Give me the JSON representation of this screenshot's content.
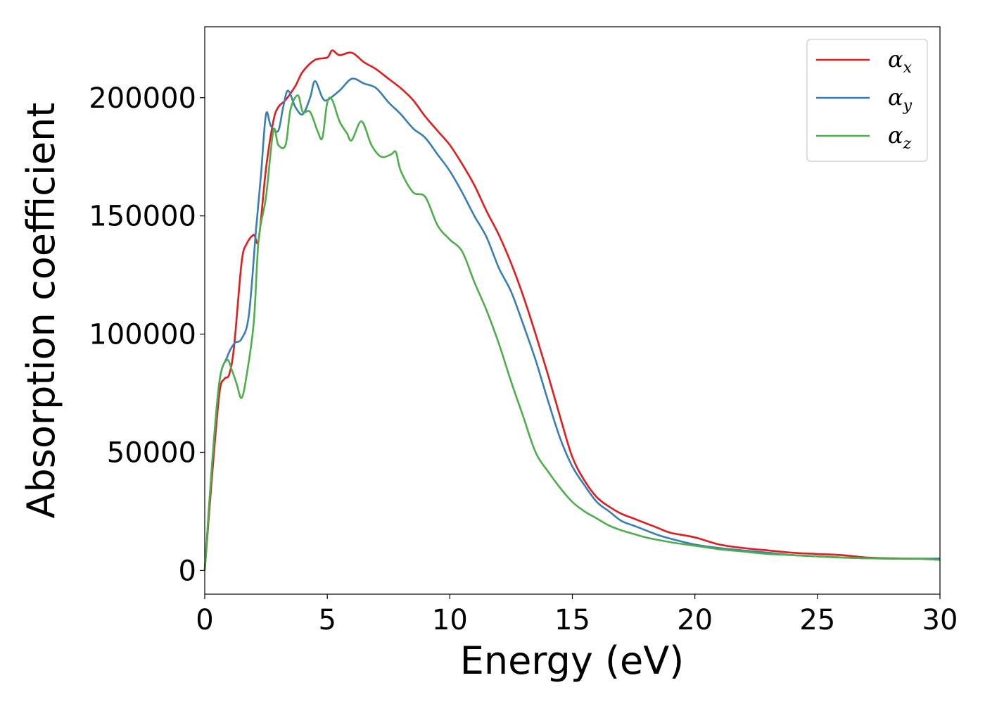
{
  "chart_data": {
    "type": "line",
    "title": "",
    "xlabel": "Energy (eV)",
    "ylabel": "Absorption coefficient",
    "xlim": [
      0,
      30
    ],
    "ylim": [
      -10000,
      230000
    ],
    "xticks": [
      0,
      5,
      10,
      15,
      20,
      25,
      30
    ],
    "xtick_labels": [
      "0",
      "5",
      "10",
      "15",
      "20",
      "25",
      "30"
    ],
    "yticks": [
      0,
      50000,
      100000,
      150000,
      200000
    ],
    "ytick_labels": [
      "0",
      "50000",
      "100000",
      "150000",
      "200000"
    ],
    "grid": false,
    "legend_position": "top-right",
    "series": [
      {
        "name": "α_x",
        "legend_main": "α",
        "legend_sub": "x",
        "color": "#e41a1c",
        "x": [
          0,
          0.3,
          0.6,
          0.8,
          1.0,
          1.2,
          1.5,
          1.7,
          2.0,
          2.2,
          2.5,
          2.8,
          3.0,
          3.3,
          3.7,
          4.0,
          4.5,
          5.0,
          5.2,
          5.5,
          6.0,
          6.5,
          7.0,
          7.5,
          8.0,
          8.5,
          9.0,
          9.5,
          10.0,
          10.5,
          11.0,
          11.5,
          12.0,
          12.5,
          13.0,
          13.5,
          14.0,
          14.5,
          15.0,
          15.5,
          16.0,
          16.5,
          17.0,
          17.5,
          18.0,
          18.5,
          19.0,
          20.0,
          21.0,
          22.0,
          23.0,
          24.0,
          25.0,
          26.0,
          27.0,
          28.0,
          29.0,
          30.0
        ],
        "y": [
          0,
          40000,
          75000,
          81000,
          83000,
          95000,
          130000,
          138000,
          142000,
          140000,
          170000,
          190000,
          196000,
          199000,
          205000,
          211000,
          216000,
          217000,
          220000,
          218000,
          219000,
          215000,
          212000,
          208000,
          204000,
          199000,
          192000,
          186000,
          180000,
          172000,
          163000,
          152000,
          142000,
          130000,
          116000,
          100000,
          83000,
          65000,
          48000,
          38000,
          31000,
          27000,
          24000,
          22000,
          20000,
          18000,
          16000,
          14000,
          11000,
          9500,
          8500,
          7500,
          7000,
          6500,
          5500,
          5200,
          5000,
          5000
        ]
      },
      {
        "name": "α_y",
        "legend_main": "α",
        "legend_sub": "y",
        "color": "#377eb8",
        "x": [
          0,
          0.3,
          0.6,
          0.9,
          1.2,
          1.5,
          1.8,
          2.1,
          2.3,
          2.5,
          2.7,
          3.0,
          3.2,
          3.4,
          3.7,
          4.0,
          4.3,
          4.5,
          4.8,
          5.0,
          5.5,
          6.0,
          6.5,
          7.0,
          7.5,
          8.0,
          8.5,
          9.0,
          9.5,
          10.0,
          10.5,
          11.0,
          11.5,
          12.0,
          12.5,
          13.0,
          13.5,
          14.0,
          14.5,
          15.0,
          15.5,
          16.0,
          16.5,
          17.0,
          17.5,
          18.0,
          18.5,
          19.0,
          20.0,
          21.0,
          22.0,
          23.0,
          24.0,
          25.0,
          26.0,
          27.0,
          28.0,
          29.0,
          30.0
        ],
        "y": [
          0,
          45000,
          80000,
          90000,
          96000,
          98000,
          108000,
          145000,
          168000,
          193000,
          188000,
          186000,
          196000,
          203000,
          196000,
          193000,
          200000,
          207000,
          200000,
          199000,
          203000,
          208000,
          206000,
          204000,
          198000,
          193000,
          187000,
          183000,
          176000,
          169000,
          160000,
          150000,
          141000,
          128000,
          118000,
          104000,
          89000,
          72000,
          56000,
          44000,
          36000,
          29000,
          25000,
          21000,
          19000,
          17000,
          15000,
          13500,
          11000,
          9500,
          8500,
          7500,
          6500,
          6000,
          5500,
          5200,
          5000,
          5000,
          5000
        ]
      },
      {
        "name": "α_z",
        "legend_main": "α",
        "legend_sub": "z",
        "color": "#4daf4a",
        "x": [
          0,
          0.3,
          0.6,
          0.9,
          1.1,
          1.3,
          1.5,
          1.7,
          2.0,
          2.2,
          2.5,
          2.8,
          3.0,
          3.3,
          3.5,
          3.8,
          4.0,
          4.3,
          4.6,
          4.8,
          5.0,
          5.2,
          5.5,
          5.8,
          6.0,
          6.4,
          6.8,
          7.2,
          7.6,
          7.8,
          8.0,
          8.5,
          9.0,
          9.5,
          10.0,
          10.5,
          11.0,
          11.5,
          12.0,
          12.5,
          13.0,
          13.5,
          14.0,
          14.5,
          15.0,
          15.5,
          16.0,
          16.5,
          17.0,
          17.5,
          18.0,
          19.0,
          20.0,
          21.0,
          22.0,
          23.0,
          24.0,
          25.0,
          26.0,
          27.0,
          28.0,
          29.0,
          30.0
        ],
        "y": [
          0,
          45000,
          80000,
          89000,
          85000,
          79000,
          73000,
          82000,
          105000,
          140000,
          158000,
          186000,
          180000,
          180000,
          195000,
          201000,
          194000,
          194000,
          186000,
          183000,
          198000,
          199000,
          190000,
          185000,
          182000,
          190000,
          180000,
          175000,
          176000,
          177000,
          169000,
          160000,
          158000,
          146000,
          140000,
          135000,
          122000,
          110000,
          96000,
          80000,
          65000,
          50000,
          42000,
          35000,
          29000,
          25000,
          22000,
          19000,
          17000,
          15500,
          14000,
          12000,
          10500,
          9000,
          8000,
          7000,
          6500,
          6000,
          5500,
          5200,
          5000,
          5000,
          4500
        ]
      }
    ]
  }
}
